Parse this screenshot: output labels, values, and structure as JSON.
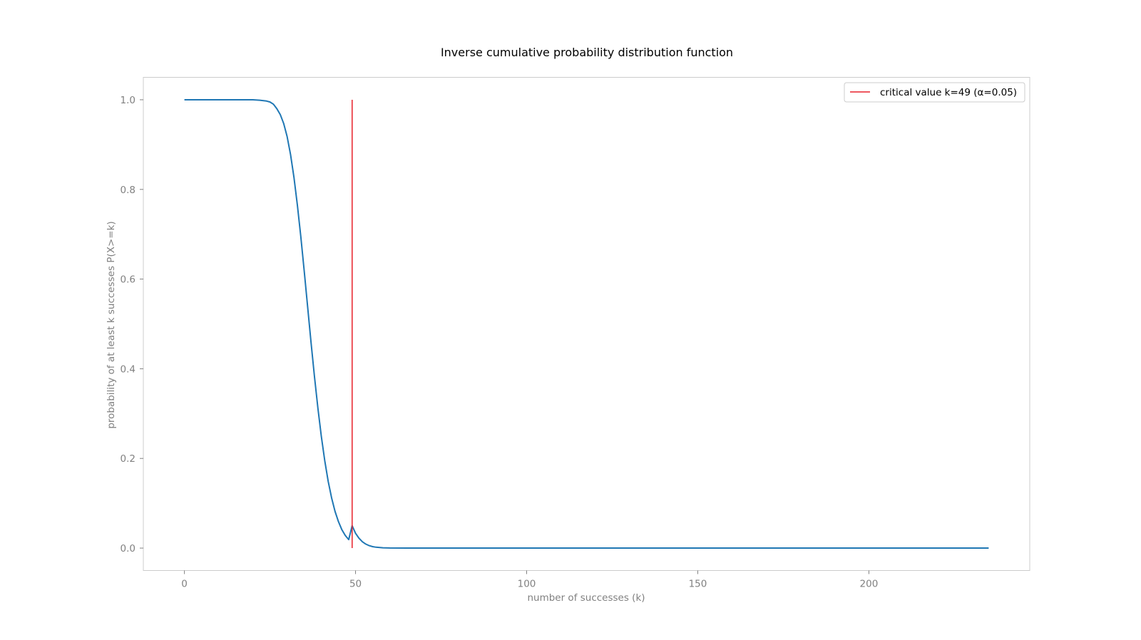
{
  "chart_data": {
    "type": "line",
    "title": "Inverse cumulative probability distribution function",
    "xlabel": "number of successes (k)",
    "ylabel": "probability of at least k successes P(X>=k)",
    "xlim": [
      -12,
      247
    ],
    "ylim": [
      -0.05,
      1.05
    ],
    "xticks": [
      0,
      50,
      100,
      150,
      200
    ],
    "yticks": [
      0.0,
      0.2,
      0.4,
      0.6,
      0.8,
      1.0
    ],
    "xtick_labels": [
      "0",
      "50",
      "100",
      "150",
      "200"
    ],
    "ytick_labels": [
      "0.0",
      "0.2",
      "0.4",
      "0.6",
      "0.8",
      "1.0"
    ],
    "grid": false,
    "legend_position": "top-right",
    "series": [
      {
        "color": "#1f77b4",
        "x": [
          0,
          10,
          20,
          22,
          24,
          25,
          26,
          27,
          28,
          29,
          30,
          31,
          32,
          33,
          34,
          35,
          36,
          37,
          38,
          39,
          40,
          41,
          42,
          43,
          44,
          45,
          46,
          47,
          48,
          49,
          50,
          51,
          52,
          53,
          54,
          55,
          56,
          58,
          60,
          65,
          70,
          100,
          150,
          200,
          235
        ],
        "y": [
          1.0,
          1.0,
          1.0,
          0.999,
          0.997,
          0.995,
          0.99,
          0.98,
          0.967,
          0.947,
          0.918,
          0.878,
          0.827,
          0.765,
          0.695,
          0.618,
          0.538,
          0.458,
          0.382,
          0.312,
          0.249,
          0.195,
          0.149,
          0.112,
          0.082,
          0.059,
          0.041,
          0.028,
          0.019,
          0.05,
          0.033,
          0.022,
          0.014,
          0.009,
          0.0055,
          0.0033,
          0.002,
          0.0007,
          0.0002,
          0.0,
          0.0,
          0.0,
          0.0,
          0.0,
          0.0
        ]
      },
      {
        "name": "critical value k=49 (α=0.05)",
        "color": "#e8212b",
        "x": [
          49,
          49
        ],
        "y": [
          0.0,
          1.0
        ]
      }
    ]
  }
}
